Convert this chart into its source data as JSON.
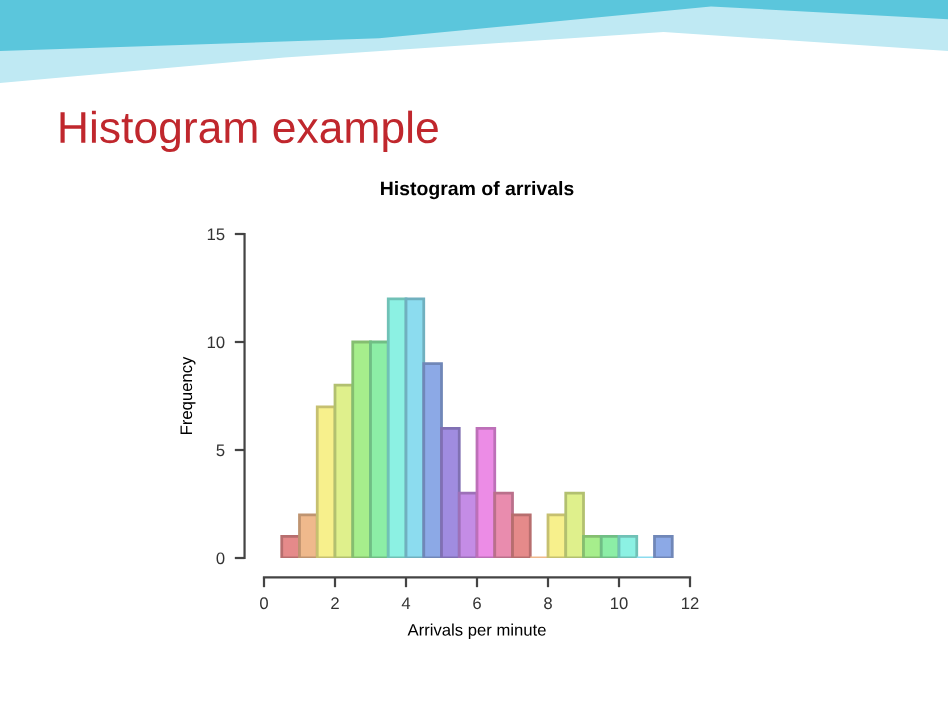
{
  "chart_data": {
    "type": "histogram",
    "title": "Histogram example",
    "subtitle": "Histogram of arrivals",
    "xlabel": "Arrivals per minute",
    "ylabel": "Frequency",
    "bins": [
      0.5,
      1.0,
      1.5,
      2.0,
      2.5,
      3.0,
      3.5,
      4.0,
      4.5,
      5.0,
      5.5,
      6.0,
      6.5,
      7.0,
      7.5,
      8.0,
      8.5,
      9.0,
      9.5,
      10.0,
      10.5,
      11.0,
      11.5
    ],
    "values": [
      1,
      2,
      7,
      8,
      10,
      10,
      12,
      12,
      9,
      6,
      3,
      6,
      3,
      2,
      0,
      2,
      3,
      1,
      1,
      1,
      0,
      1
    ],
    "colors": [
      "#e58a8a",
      "#efb98c",
      "#f7f08c",
      "#dff08c",
      "#a6ee8c",
      "#8ceea6",
      "#8cf1e3",
      "#8cdcef",
      "#8ca9e6",
      "#a08ce0",
      "#c48ce6",
      "#ec8ce6",
      "#e98cae",
      "#e58a8a",
      "#efb98c",
      "#f7f08c",
      "#dff08c",
      "#a6ee8c",
      "#8ceea6",
      "#8cf1e3",
      "#8cdcef",
      "#8ca9e6"
    ],
    "xlim": [
      0,
      12
    ],
    "xticks": [
      0,
      2,
      4,
      6,
      8,
      10,
      12
    ],
    "ylim": [
      0,
      15
    ],
    "yticks": [
      0,
      5,
      10,
      15
    ],
    "grid": false
  }
}
